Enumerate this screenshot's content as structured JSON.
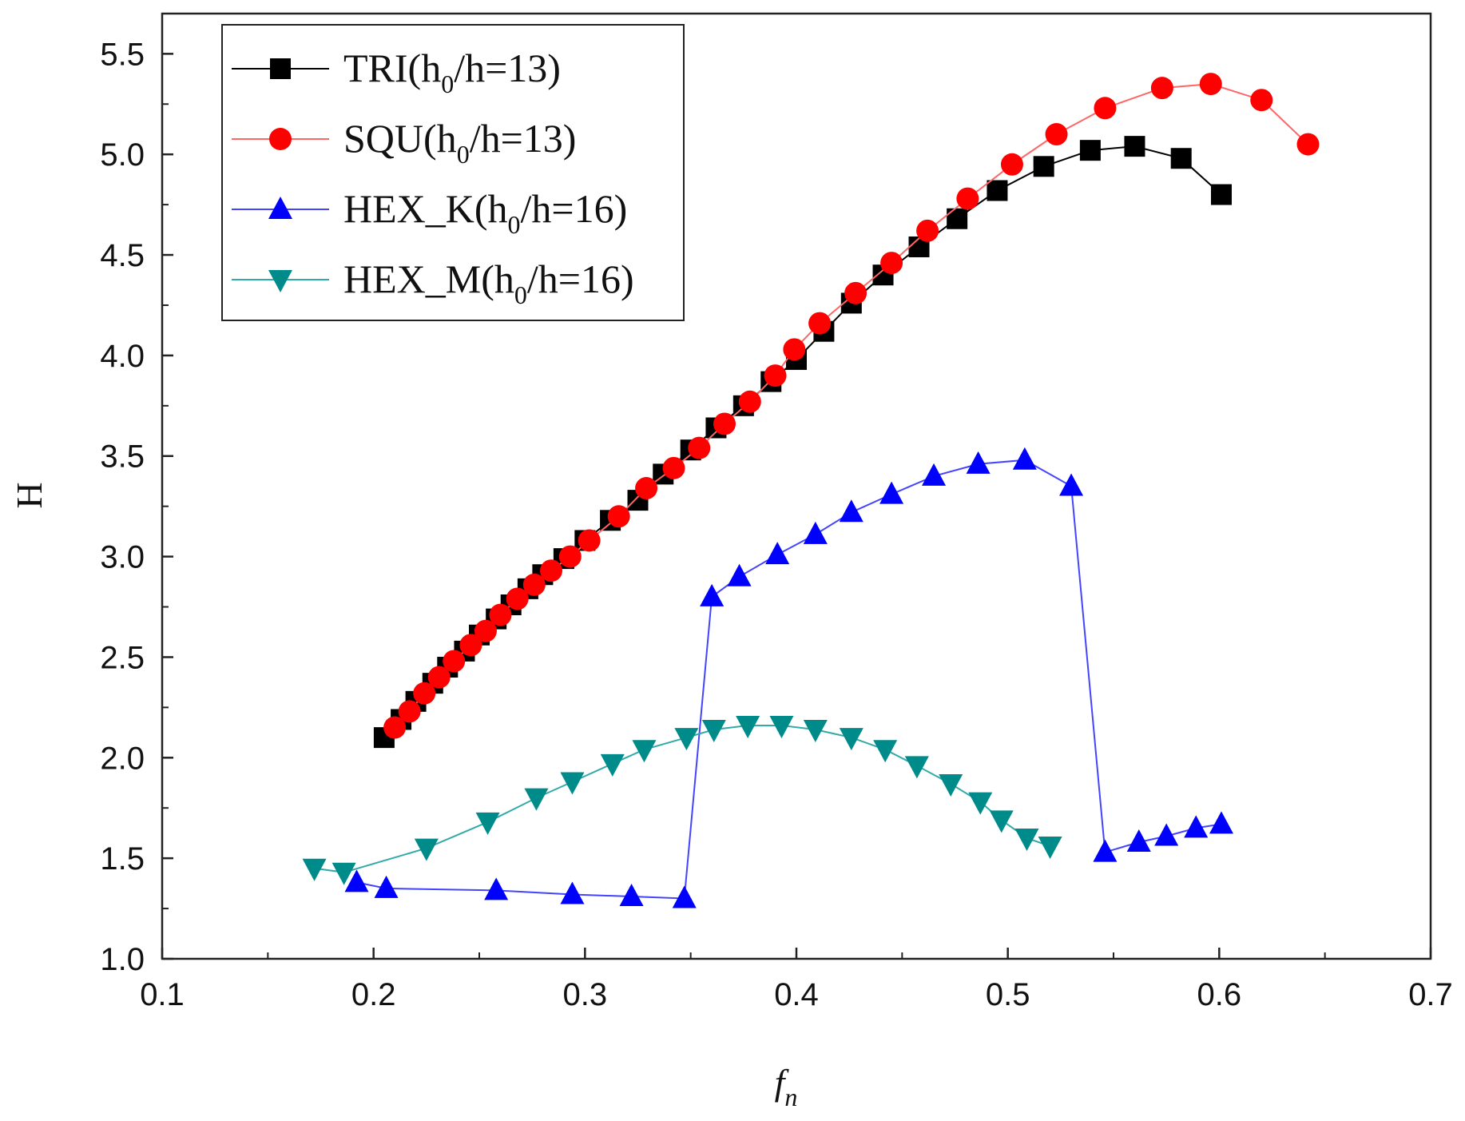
{
  "chart_data": {
    "type": "line",
    "title": "",
    "xlabel": "f",
    "xlabel_sub": "n",
    "ylabel": "H",
    "xlim": [
      0.1,
      0.7
    ],
    "ylim": [
      1.0,
      5.7
    ],
    "xticks": [
      0.1,
      0.2,
      0.3,
      0.4,
      0.5,
      0.6,
      0.7
    ],
    "xtick_labels": [
      "0.1",
      "0.2",
      "0.3",
      "0.4",
      "0.5",
      "0.6",
      "0.7"
    ],
    "yticks": [
      1.0,
      1.5,
      2.0,
      2.5,
      3.0,
      3.5,
      4.0,
      4.5,
      5.0,
      5.5
    ],
    "ytick_labels": [
      "1.0",
      "1.5",
      "2.0",
      "2.5",
      "3.0",
      "3.5",
      "4.0",
      "4.5",
      "5.0",
      "5.5"
    ],
    "grid": false,
    "legend_position": "top-left",
    "series": [
      {
        "name": "TRI(h0/h=13)",
        "legend_main": "TRI(h",
        "legend_sub": "0",
        "legend_tail": "/h=13)",
        "color": "#000000",
        "line_color": "#000000",
        "marker": "square",
        "points": [
          [
            0.205,
            2.1
          ],
          [
            0.213,
            2.19
          ],
          [
            0.22,
            2.28
          ],
          [
            0.228,
            2.37
          ],
          [
            0.235,
            2.45
          ],
          [
            0.243,
            2.53
          ],
          [
            0.25,
            2.61
          ],
          [
            0.258,
            2.69
          ],
          [
            0.265,
            2.76
          ],
          [
            0.273,
            2.84
          ],
          [
            0.28,
            2.91
          ],
          [
            0.29,
            2.99
          ],
          [
            0.3,
            3.08
          ],
          [
            0.312,
            3.18
          ],
          [
            0.325,
            3.28
          ],
          [
            0.337,
            3.41
          ],
          [
            0.35,
            3.53
          ],
          [
            0.362,
            3.64
          ],
          [
            0.375,
            3.75
          ],
          [
            0.388,
            3.87
          ],
          [
            0.4,
            3.98
          ],
          [
            0.413,
            4.12
          ],
          [
            0.426,
            4.26
          ],
          [
            0.441,
            4.4
          ],
          [
            0.458,
            4.54
          ],
          [
            0.476,
            4.68
          ],
          [
            0.495,
            4.82
          ],
          [
            0.517,
            4.94
          ],
          [
            0.539,
            5.02
          ],
          [
            0.56,
            5.04
          ],
          [
            0.582,
            4.98
          ],
          [
            0.601,
            4.8
          ]
        ]
      },
      {
        "name": "SQU(h0/h=13)",
        "legend_main": "SQU(h",
        "legend_sub": "0",
        "legend_tail": "/h=13)",
        "color": "#ff0000",
        "line_color": "#ff6666",
        "marker": "circle",
        "points": [
          [
            0.21,
            2.15
          ],
          [
            0.217,
            2.23
          ],
          [
            0.224,
            2.32
          ],
          [
            0.231,
            2.4
          ],
          [
            0.238,
            2.48
          ],
          [
            0.246,
            2.56
          ],
          [
            0.253,
            2.63
          ],
          [
            0.26,
            2.71
          ],
          [
            0.268,
            2.79
          ],
          [
            0.276,
            2.86
          ],
          [
            0.284,
            2.93
          ],
          [
            0.293,
            3.0
          ],
          [
            0.302,
            3.08
          ],
          [
            0.316,
            3.2
          ],
          [
            0.329,
            3.34
          ],
          [
            0.342,
            3.44
          ],
          [
            0.354,
            3.54
          ],
          [
            0.366,
            3.66
          ],
          [
            0.378,
            3.77
          ],
          [
            0.39,
            3.9
          ],
          [
            0.399,
            4.03
          ],
          [
            0.411,
            4.16
          ],
          [
            0.428,
            4.31
          ],
          [
            0.445,
            4.46
          ],
          [
            0.462,
            4.62
          ],
          [
            0.481,
            4.78
          ],
          [
            0.502,
            4.95
          ],
          [
            0.523,
            5.1
          ],
          [
            0.546,
            5.23
          ],
          [
            0.573,
            5.33
          ],
          [
            0.596,
            5.35
          ],
          [
            0.62,
            5.27
          ],
          [
            0.642,
            5.05
          ]
        ]
      },
      {
        "name": "HEX_K(h0/h=16)",
        "legend_main": "HEX_K(h",
        "legend_sub": "0",
        "legend_tail": "/h=16)",
        "color": "#0000ff",
        "line_color": "#4444ff",
        "marker": "triangle-up",
        "points": [
          [
            0.192,
            1.38
          ],
          [
            0.206,
            1.35
          ],
          [
            0.258,
            1.34
          ],
          [
            0.294,
            1.32
          ],
          [
            0.322,
            1.31
          ],
          [
            0.347,
            1.3
          ],
          [
            0.36,
            2.8
          ],
          [
            0.373,
            2.9
          ],
          [
            0.391,
            3.01
          ],
          [
            0.409,
            3.11
          ],
          [
            0.426,
            3.22
          ],
          [
            0.445,
            3.31
          ],
          [
            0.465,
            3.4
          ],
          [
            0.486,
            3.46
          ],
          [
            0.508,
            3.48
          ],
          [
            0.53,
            3.35
          ],
          [
            0.546,
            1.53
          ],
          [
            0.562,
            1.58
          ],
          [
            0.575,
            1.61
          ],
          [
            0.589,
            1.65
          ],
          [
            0.601,
            1.67
          ]
        ]
      },
      {
        "name": "HEX_M(h0/h=16)",
        "legend_main": "HEX_M(h",
        "legend_sub": "0",
        "legend_tail": "/h=16)",
        "color": "#008b8b",
        "line_color": "#33aaaa",
        "marker": "triangle-down",
        "points": [
          [
            0.172,
            1.45
          ],
          [
            0.186,
            1.43
          ],
          [
            0.225,
            1.55
          ],
          [
            0.254,
            1.68
          ],
          [
            0.277,
            1.8
          ],
          [
            0.294,
            1.88
          ],
          [
            0.313,
            1.97
          ],
          [
            0.328,
            2.04
          ],
          [
            0.348,
            2.1
          ],
          [
            0.361,
            2.14
          ],
          [
            0.377,
            2.16
          ],
          [
            0.393,
            2.16
          ],
          [
            0.409,
            2.14
          ],
          [
            0.426,
            2.1
          ],
          [
            0.442,
            2.04
          ],
          [
            0.457,
            1.96
          ],
          [
            0.473,
            1.87
          ],
          [
            0.487,
            1.78
          ],
          [
            0.497,
            1.69
          ],
          [
            0.509,
            1.6
          ],
          [
            0.52,
            1.56
          ]
        ]
      }
    ]
  }
}
